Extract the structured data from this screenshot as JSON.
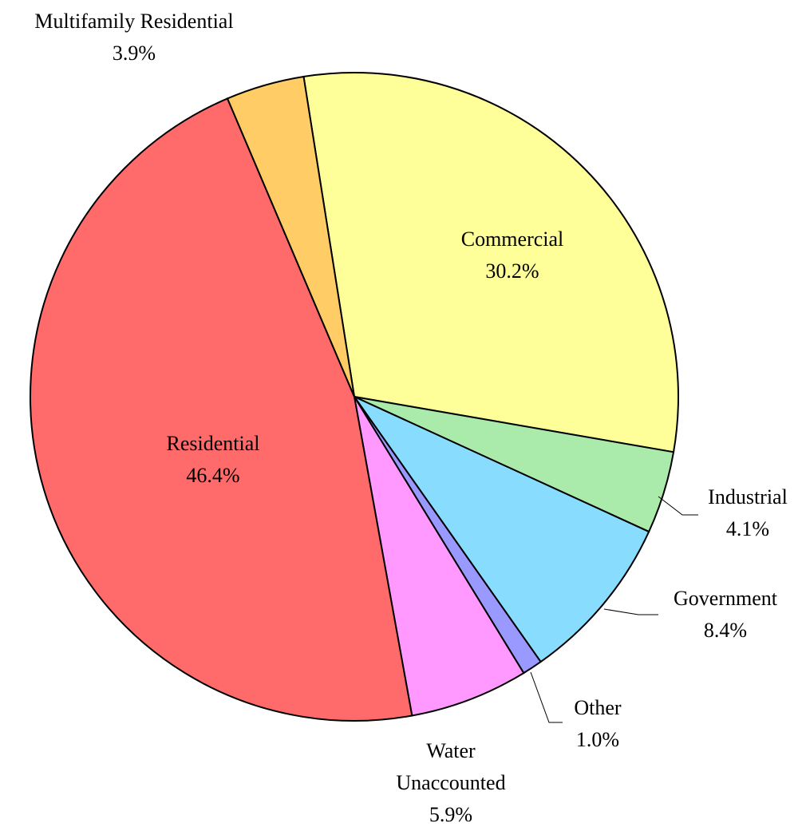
{
  "chart_data": {
    "type": "pie",
    "categories": [
      "Commercial",
      "Industrial",
      "Government",
      "Other",
      "Water Unaccounted",
      "Residential",
      "Multifamily Residential"
    ],
    "values": [
      30.2,
      4.1,
      8.4,
      1.0,
      5.9,
      46.4,
      3.9
    ],
    "value_labels": [
      "30.2%",
      "4.1%",
      "8.4%",
      "1.0%",
      "5.9%",
      "46.4%",
      "3.9%"
    ],
    "colors": [
      "#ffff99",
      "#aaeaaa",
      "#88ddff",
      "#9999ff",
      "#ff99ff",
      "#ff6b6b",
      "#ffcc66"
    ]
  }
}
